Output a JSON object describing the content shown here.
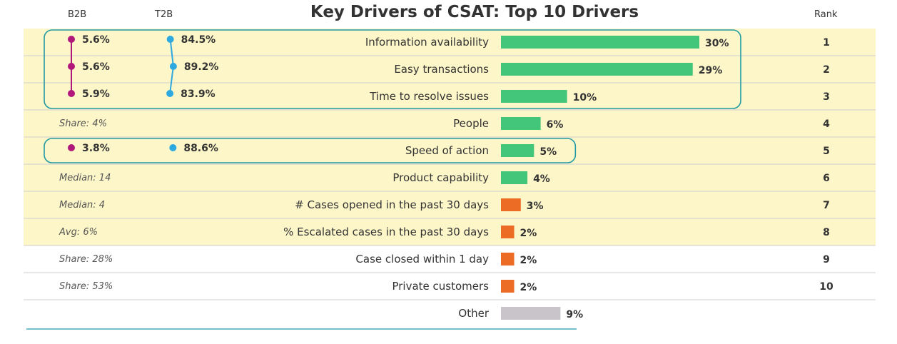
{
  "header": {
    "b2b": "B2B",
    "t2b": "T2B",
    "title": "Key Drivers of CSAT: Top 10 Drivers",
    "rank": "Rank"
  },
  "colors": {
    "highlight": "#fdf6c8",
    "good": "#43c57a",
    "bad": "#ec6b25",
    "other": "#c8c4c9",
    "b2b_dot": "#b0187b",
    "t2b_dot": "#2ea9e0",
    "frame": "#1f9aa3",
    "grid": "#cfcfcf"
  },
  "chart_data": {
    "type": "bar",
    "title": "Key Drivers of CSAT: Top 10 Drivers",
    "xlim": [
      0,
      30
    ],
    "categories": [
      "Information availability",
      "Easy transactions",
      "Time to resolve issues",
      "People",
      "Speed of action",
      "Product capability",
      "# Cases opened in the past 30 days",
      "% Escalated cases in the past 30 days",
      "Case closed within 1 day",
      "Private customers",
      "Other"
    ],
    "values": [
      30,
      29,
      10,
      6,
      5,
      4,
      3,
      2,
      2,
      2,
      9
    ],
    "value_labels": [
      "30%",
      "29%",
      "10%",
      "6%",
      "5%",
      "4%",
      "3%",
      "2%",
      "2%",
      "2%",
      "9%"
    ],
    "rank": [
      "1",
      "2",
      "3",
      "4",
      "5",
      "6",
      "7",
      "8",
      "9",
      "10",
      ""
    ],
    "highlighted": [
      true,
      true,
      true,
      true,
      true,
      true,
      true,
      true,
      false,
      false,
      false
    ],
    "bar_color": [
      "good",
      "good",
      "good",
      "good",
      "good",
      "good",
      "bad",
      "bad",
      "bad",
      "bad",
      "other"
    ],
    "b2b": [
      5.6,
      5.6,
      5.9,
      null,
      3.8,
      null,
      null,
      null,
      null,
      null,
      null
    ],
    "b2b_labels": [
      "5.6%",
      "5.6%",
      "5.9%",
      "",
      "3.8%",
      "",
      "",
      "",
      "",
      "",
      ""
    ],
    "t2b": [
      84.5,
      89.2,
      83.9,
      null,
      88.6,
      null,
      null,
      null,
      null,
      null,
      null
    ],
    "t2b_labels": [
      "84.5%",
      "89.2%",
      "83.9%",
      "",
      "88.6%",
      "",
      "",
      "",
      "",
      "",
      ""
    ],
    "notes": [
      "",
      "",
      "",
      "Share: 4%",
      "",
      "Median: 14",
      "Median: 4",
      "Avg: 6%",
      "Share: 28%",
      "Share: 53%",
      ""
    ],
    "groups": [
      [
        0,
        2
      ],
      [
        4,
        4
      ]
    ]
  }
}
